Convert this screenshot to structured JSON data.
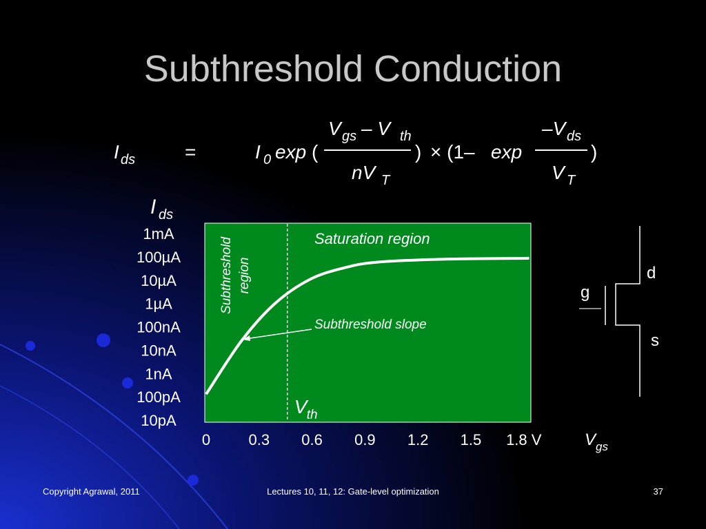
{
  "title": "Subthreshold Conduction",
  "equation": {
    "parts": [
      "I",
      "ds",
      "=",
      "I",
      "0",
      "exp",
      "(",
      "V",
      "gs",
      "– V",
      "th",
      ")",
      "× (1–",
      "exp",
      "–V",
      "ds",
      ")",
      "nV",
      "T",
      "V",
      "T"
    ]
  },
  "chart_data": {
    "type": "line",
    "y_label": "I",
    "y_label_sub": "ds",
    "x_label": "V",
    "x_label_sub": "gs",
    "log_y": true,
    "xlim": [
      0,
      1.84
    ],
    "ylim": [
      1e-11,
      0.001
    ],
    "xticks": [
      0,
      0.3,
      0.6,
      0.9,
      1.2,
      {
        "value": 1.8,
        "label": "1.8 V"
      }
    ],
    "xticks_extra": [
      1.5
    ],
    "yticks": [
      {
        "value": 0.001,
        "label": "1mA"
      },
      {
        "value": 0.0001,
        "label": "100µA"
      },
      {
        "value": 1e-05,
        "label": "10µA"
      },
      {
        "value": 1e-06,
        "label": "1µA"
      },
      {
        "value": 1e-07,
        "label": "100nA"
      },
      {
        "value": 1e-08,
        "label": "10nA"
      },
      {
        "value": 1e-09,
        "label": "1nA"
      },
      {
        "value": 1e-10,
        "label": "100pA"
      },
      {
        "value": 1e-11,
        "label": "10pA"
      }
    ],
    "series": [
      {
        "color": "#ffffff",
        "x": [
          0,
          0.2,
          0.39,
          0.59,
          0.79,
          0.98,
          1.37,
          1.83
        ],
        "values": [
          1.3e-10,
          2.5e-08,
          1e-06,
          1.1e-05,
          3.5e-05,
          6e-05,
          8e-05,
          8.7e-05
        ]
      }
    ],
    "reference_line": {
      "x": 0.46,
      "label": "V",
      "label_sub": "th"
    },
    "annotations": [
      "Saturation region",
      "Subthreshold",
      "region",
      "Subthreshold slope"
    ]
  },
  "transistor": {
    "drain": "d",
    "gate": "g",
    "source": "s"
  },
  "footer": {
    "left": "Copyright Agrawal, 2011",
    "center": "Lectures 10, 11, 12: Gate-level optimization",
    "page": "37"
  }
}
